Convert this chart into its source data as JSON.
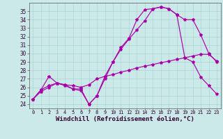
{
  "background_color": "#cce9e9",
  "grid_color": "#aad4d4",
  "line_color": "#aa00aa",
  "xlabel": "Windchill (Refroidissement éolien,°C)",
  "xlim": [
    -0.5,
    23.5
  ],
  "ylim": [
    23.5,
    36.0
  ],
  "xticks": [
    0,
    1,
    2,
    3,
    4,
    5,
    6,
    7,
    8,
    9,
    10,
    11,
    12,
    13,
    14,
    15,
    16,
    17,
    18,
    19,
    20,
    21,
    22,
    23
  ],
  "yticks": [
    24,
    25,
    26,
    27,
    28,
    29,
    30,
    31,
    32,
    33,
    34,
    35
  ],
  "curve1_x": [
    0,
    1,
    2,
    3,
    4,
    5,
    6,
    7,
    8,
    9,
    10,
    11,
    12,
    13,
    14,
    15,
    16,
    17,
    18,
    19,
    20,
    21,
    22,
    23
  ],
  "curve1_y": [
    24.6,
    25.7,
    27.3,
    26.5,
    26.3,
    25.8,
    25.8,
    24.0,
    25.0,
    27.3,
    29.0,
    30.7,
    31.8,
    34.0,
    35.2,
    35.3,
    35.5,
    35.3,
    34.6,
    29.5,
    29.0,
    27.2,
    26.2,
    25.2
  ],
  "curve2_x": [
    0,
    1,
    2,
    3,
    4,
    5,
    6,
    7,
    8,
    9,
    10,
    11,
    12,
    13,
    14,
    15,
    16,
    17,
    18,
    19,
    20,
    21,
    22,
    23
  ],
  "curve2_y": [
    24.6,
    25.7,
    26.2,
    26.5,
    26.2,
    25.8,
    25.6,
    24.0,
    25.0,
    27.0,
    29.0,
    30.5,
    31.7,
    32.8,
    33.9,
    35.3,
    35.5,
    35.3,
    34.6,
    34.0,
    34.0,
    32.2,
    30.0,
    29.0
  ],
  "curve3_x": [
    0,
    1,
    2,
    3,
    4,
    5,
    6,
    7,
    8,
    9,
    10,
    11,
    12,
    13,
    14,
    15,
    16,
    17,
    18,
    19,
    20,
    21,
    22,
    23
  ],
  "curve3_y": [
    24.6,
    25.5,
    26.0,
    26.5,
    26.3,
    26.2,
    26.0,
    26.3,
    27.0,
    27.3,
    27.5,
    27.8,
    28.0,
    28.3,
    28.5,
    28.7,
    28.9,
    29.1,
    29.3,
    29.5,
    29.7,
    29.9,
    29.9,
    29.1
  ]
}
